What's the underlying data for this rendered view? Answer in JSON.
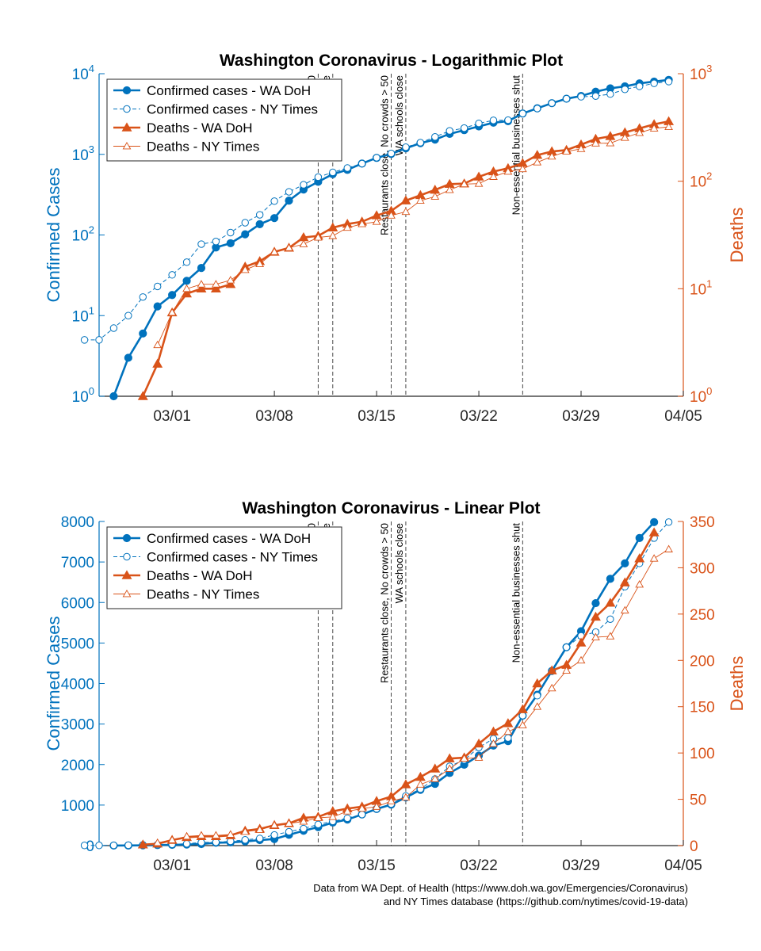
{
  "colors": {
    "cases": "#0072BD",
    "deaths": "#D95319"
  },
  "footer": {
    "line1": "Data from WA Dept. of Health (https://www.doh.wa.gov/Emergencies/Coronavirus)",
    "line2": "and NY Times database (https://github.com/nytimes/covid-19-data)"
  },
  "chart_data": [
    {
      "type": "line",
      "title": "Washington Coronavirus - Logarithmic Plot",
      "x_type": "date",
      "xlim": [
        "2020-02-25",
        "2020-04-05"
      ],
      "xticks": [
        {
          "date": "2020-03-01",
          "label": "03/01"
        },
        {
          "date": "2020-03-08",
          "label": "03/08"
        },
        {
          "date": "2020-03-15",
          "label": "03/15"
        },
        {
          "date": "2020-03-22",
          "label": "03/22"
        },
        {
          "date": "2020-03-29",
          "label": "03/29"
        },
        {
          "date": "2020-04-05",
          "label": "04/05"
        }
      ],
      "left_axis": {
        "label": "Confirmed Cases",
        "scale": "log",
        "lim": [
          1,
          10000
        ],
        "ticks": [
          {
            "v": 1,
            "base": "10",
            "exp": "0"
          },
          {
            "v": 10,
            "base": "10",
            "exp": "1"
          },
          {
            "v": 100,
            "base": "10",
            "exp": "2"
          },
          {
            "v": 1000,
            "base": "10",
            "exp": "3"
          },
          {
            "v": 10000,
            "base": "10",
            "exp": "4"
          }
        ]
      },
      "right_axis": {
        "label": "Deaths",
        "scale": "log",
        "lim": [
          1,
          1000
        ],
        "ticks": [
          {
            "v": 1,
            "base": "10",
            "exp": "0"
          },
          {
            "v": 10,
            "base": "10",
            "exp": "1"
          },
          {
            "v": 100,
            "base": "10",
            "exp": "2"
          },
          {
            "v": 1000,
            "base": "10",
            "exp": "3"
          }
        ]
      },
      "legend": {
        "placement": "top-left",
        "entries": [
          "Confirmed cases - WA DoH",
          "Confirmed cases - NY Times",
          "Deaths - WA DoH",
          "Deaths - NY Times"
        ]
      },
      "grid": false
    },
    {
      "type": "line",
      "title": "Washington Coronavirus - Linear Plot",
      "x_type": "date",
      "xlim": [
        "2020-02-25",
        "2020-04-05"
      ],
      "xticks": [
        {
          "date": "2020-03-01",
          "label": "03/01"
        },
        {
          "date": "2020-03-08",
          "label": "03/08"
        },
        {
          "date": "2020-03-15",
          "label": "03/15"
        },
        {
          "date": "2020-03-22",
          "label": "03/22"
        },
        {
          "date": "2020-03-29",
          "label": "03/29"
        },
        {
          "date": "2020-04-05",
          "label": "04/05"
        }
      ],
      "left_axis": {
        "label": "Confirmed Cases",
        "scale": "linear",
        "lim": [
          0,
          8000
        ],
        "ticks": [
          {
            "v": 0,
            "label": "0"
          },
          {
            "v": 1000,
            "label": "1000"
          },
          {
            "v": 2000,
            "label": "2000"
          },
          {
            "v": 3000,
            "label": "3000"
          },
          {
            "v": 4000,
            "label": "4000"
          },
          {
            "v": 5000,
            "label": "5000"
          },
          {
            "v": 6000,
            "label": "6000"
          },
          {
            "v": 7000,
            "label": "7000"
          },
          {
            "v": 8000,
            "label": "8000"
          }
        ]
      },
      "right_axis": {
        "label": "Deaths",
        "scale": "linear",
        "lim": [
          0,
          350
        ],
        "ticks": [
          {
            "v": 0,
            "label": "0"
          },
          {
            "v": 50,
            "label": "50"
          },
          {
            "v": 100,
            "label": "100"
          },
          {
            "v": 150,
            "label": "150"
          },
          {
            "v": 200,
            "label": "200"
          },
          {
            "v": 250,
            "label": "250"
          },
          {
            "v": 300,
            "label": "300"
          },
          {
            "v": 350,
            "label": "350"
          }
        ]
      },
      "legend": {
        "placement": "top-left",
        "entries": [
          "Confirmed cases - WA DoH",
          "Confirmed cases - NY Times",
          "Deaths - WA DoH",
          "Deaths - NY Times"
        ]
      },
      "grid": false
    }
  ],
  "events": [
    {
      "date": "2020-03-11",
      "label": "0"
    },
    {
      "date": "2020-03-12",
      "label": "Seat e"
    },
    {
      "date": "2020-03-16",
      "label": "Restaurants close, No crowds > 50"
    },
    {
      "date": "2020-03-17",
      "label": "WA schools close"
    },
    {
      "date": "2020-03-25",
      "label": "Non-essential businesses shut"
    }
  ],
  "series": [
    {
      "name": "Confirmed cases - WA DoH",
      "axis": "left",
      "style": "solid-filled-circle",
      "dates": [
        "2020-02-26",
        "2020-02-27",
        "2020-02-28",
        "2020-02-29",
        "2020-03-01",
        "2020-03-02",
        "2020-03-03",
        "2020-03-04",
        "2020-03-05",
        "2020-03-06",
        "2020-03-07",
        "2020-03-08",
        "2020-03-09",
        "2020-03-10",
        "2020-03-11",
        "2020-03-12",
        "2020-03-13",
        "2020-03-14",
        "2020-03-15",
        "2020-03-16",
        "2020-03-17",
        "2020-03-18",
        "2020-03-19",
        "2020-03-20",
        "2020-03-21",
        "2020-03-22",
        "2020-03-23",
        "2020-03-24",
        "2020-03-25",
        "2020-03-26",
        "2020-03-27",
        "2020-03-28",
        "2020-03-29",
        "2020-03-30",
        "2020-03-31",
        "2020-04-01",
        "2020-04-02",
        "2020-04-03",
        "2020-04-04"
      ],
      "values": [
        1,
        3,
        6,
        13,
        18,
        27,
        39,
        70,
        79,
        102,
        136,
        162,
        267,
        366,
        457,
        568,
        642,
        769,
        904,
        1012,
        1187,
        1376,
        1524,
        1793,
        1996,
        2221,
        2469,
        2580,
        3207,
        3723,
        4310,
        4896,
        5292,
        5984,
        6585,
        6966,
        7591,
        7984,
        8384
      ]
    },
    {
      "name": "Confirmed cases - NY Times",
      "axis": "left",
      "style": "dashed-open-circle",
      "dates": [
        "2020-02-24",
        "2020-02-25",
        "2020-02-26",
        "2020-02-27",
        "2020-02-28",
        "2020-02-29",
        "2020-03-01",
        "2020-03-02",
        "2020-03-03",
        "2020-03-04",
        "2020-03-05",
        "2020-03-06",
        "2020-03-07",
        "2020-03-08",
        "2020-03-09",
        "2020-03-10",
        "2020-03-11",
        "2020-03-12",
        "2020-03-13",
        "2020-03-14",
        "2020-03-15",
        "2020-03-16",
        "2020-03-17",
        "2020-03-18",
        "2020-03-19",
        "2020-03-20",
        "2020-03-21",
        "2020-03-22",
        "2020-03-23",
        "2020-03-24",
        "2020-03-25",
        "2020-03-26",
        "2020-03-27",
        "2020-03-28",
        "2020-03-29",
        "2020-03-30",
        "2020-03-31",
        "2020-04-01",
        "2020-04-02",
        "2020-04-03",
        "2020-04-04"
      ],
      "values": [
        5,
        5,
        7,
        10,
        17,
        23,
        32,
        46,
        77,
        83,
        107,
        142,
        178,
        263,
        343,
        420,
        522,
        598,
        677,
        767,
        908,
        1027,
        1227,
        1397,
        1645,
        1956,
        2116,
        2423,
        2638,
        2656,
        3207,
        3700,
        4311,
        4896,
        5175,
        5270,
        5588,
        6389,
        6966,
        7591,
        7984
      ]
    },
    {
      "name": "Deaths - WA DoH",
      "axis": "right",
      "style": "solid-filled-triangle",
      "dates": [
        "2020-02-28",
        "2020-02-29",
        "2020-03-01",
        "2020-03-02",
        "2020-03-03",
        "2020-03-04",
        "2020-03-05",
        "2020-03-06",
        "2020-03-07",
        "2020-03-08",
        "2020-03-09",
        "2020-03-10",
        "2020-03-11",
        "2020-03-12",
        "2020-03-13",
        "2020-03-14",
        "2020-03-15",
        "2020-03-16",
        "2020-03-17",
        "2020-03-18",
        "2020-03-19",
        "2020-03-20",
        "2020-03-21",
        "2020-03-22",
        "2020-03-23",
        "2020-03-24",
        "2020-03-25",
        "2020-03-26",
        "2020-03-27",
        "2020-03-28",
        "2020-03-29",
        "2020-03-30",
        "2020-03-31",
        "2020-04-01",
        "2020-04-02",
        "2020-04-03",
        "2020-04-04"
      ],
      "values": [
        1,
        2,
        6,
        9,
        10,
        10,
        11,
        16,
        18,
        22,
        24,
        30,
        31,
        37,
        40,
        42,
        48,
        53,
        66,
        74,
        83,
        94,
        95,
        110,
        123,
        132,
        147,
        175,
        189,
        195,
        219,
        247,
        262,
        284,
        310,
        338,
        360
      ]
    },
    {
      "name": "Deaths - NY Times",
      "axis": "right",
      "style": "thin-open-triangle",
      "dates": [
        "2020-02-29",
        "2020-03-01",
        "2020-03-02",
        "2020-03-03",
        "2020-03-04",
        "2020-03-05",
        "2020-03-06",
        "2020-03-07",
        "2020-03-08",
        "2020-03-09",
        "2020-03-10",
        "2020-03-11",
        "2020-03-12",
        "2020-03-13",
        "2020-03-14",
        "2020-03-15",
        "2020-03-16",
        "2020-03-17",
        "2020-03-18",
        "2020-03-19",
        "2020-03-20",
        "2020-03-21",
        "2020-03-22",
        "2020-03-23",
        "2020-03-24",
        "2020-03-25",
        "2020-03-26",
        "2020-03-27",
        "2020-03-28",
        "2020-03-29",
        "2020-03-30",
        "2020-03-31",
        "2020-04-01",
        "2020-04-02",
        "2020-04-03",
        "2020-04-04"
      ],
      "values": [
        3,
        6,
        10,
        11,
        11,
        12,
        15,
        17,
        22,
        24,
        26,
        30,
        31,
        37,
        40,
        42,
        48,
        52,
        66,
        72,
        83,
        94,
        95,
        110,
        123,
        130,
        150,
        170,
        189,
        200,
        225,
        226,
        254,
        282,
        310,
        320
      ]
    }
  ]
}
